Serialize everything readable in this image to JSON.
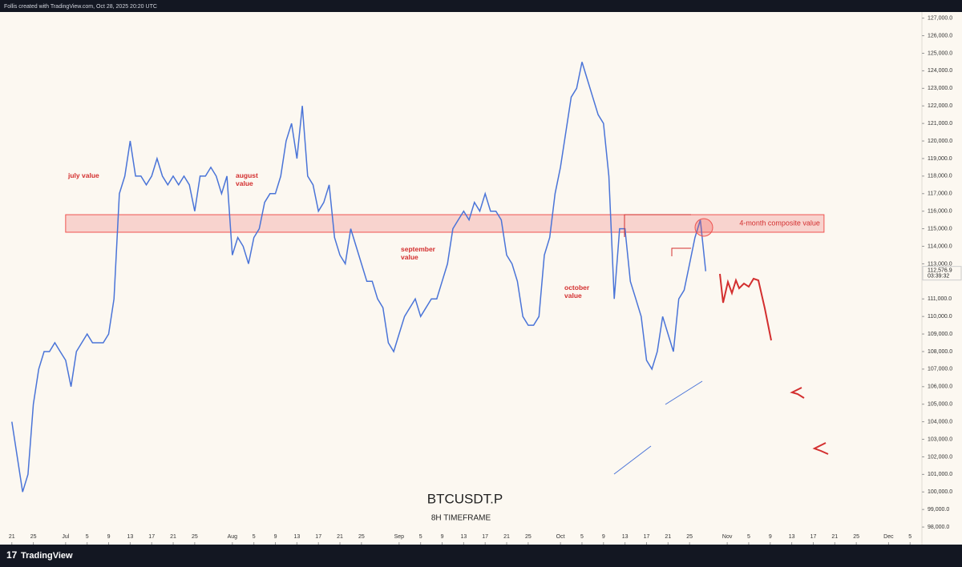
{
  "header": {
    "text": "Follis created with TradingView.com, Oct 28, 2025 20:20 UTC"
  },
  "footer": {
    "brand": "TradingView"
  },
  "chart_data": {
    "type": "line",
    "title": "BTCUSDT.P",
    "subtitle": "8H TIMEFRAME",
    "color": "#4a74d8",
    "x": [
      0,
      1,
      2,
      3,
      4,
      5,
      6,
      7,
      8,
      9,
      10,
      11,
      12,
      13,
      14,
      15,
      16,
      17,
      18,
      19,
      20,
      21,
      22,
      23,
      24,
      25,
      26,
      27,
      28,
      29,
      30,
      31,
      32,
      33,
      34,
      35,
      36,
      37,
      38,
      39,
      40,
      41,
      42,
      43,
      44,
      45,
      46,
      47,
      48,
      49,
      50,
      51,
      52,
      53,
      54,
      55,
      56,
      57,
      58,
      59,
      60,
      61,
      62,
      63,
      64,
      65,
      66,
      67,
      68,
      69,
      70,
      71,
      72,
      73,
      74,
      75,
      76,
      77,
      78,
      79,
      80,
      81,
      82,
      83,
      84,
      85,
      86,
      87,
      88,
      89,
      90,
      91,
      92,
      93,
      94,
      95,
      96,
      97,
      98,
      99,
      100,
      101,
      102,
      103,
      104,
      105,
      106,
      107,
      108,
      109,
      110,
      111,
      112,
      113,
      114,
      115,
      116,
      117,
      118,
      119,
      120,
      121,
      122,
      123,
      124,
      125,
      126,
      127,
      128,
      129
    ],
    "values": [
      104000,
      102000,
      100000,
      101000,
      105000,
      107000,
      108000,
      108000,
      108500,
      108000,
      107500,
      106000,
      108000,
      108500,
      109000,
      108500,
      108500,
      108500,
      109000,
      111000,
      117000,
      118000,
      120000,
      118000,
      118000,
      117500,
      118000,
      119000,
      118000,
      117500,
      118000,
      117500,
      118000,
      117500,
      116000,
      118000,
      118000,
      118500,
      118000,
      117000,
      118000,
      113500,
      114500,
      114000,
      113000,
      114500,
      115000,
      116500,
      117000,
      117000,
      118000,
      120000,
      121000,
      119000,
      122000,
      118000,
      117500,
      116000,
      116500,
      117500,
      114500,
      113500,
      113000,
      115000,
      114000,
      113000,
      112000,
      112000,
      111000,
      110500,
      108500,
      108000,
      109000,
      110000,
      110500,
      111000,
      110000,
      110500,
      111000,
      111000,
      112000,
      113000,
      115000,
      115500,
      116000,
      115500,
      116500,
      116000,
      117000,
      116000,
      116000,
      115500,
      113500,
      113000,
      112000,
      110000,
      109500,
      109500,
      110000,
      113500,
      114500,
      117000,
      118500,
      120500,
      122500,
      123000,
      124500,
      123500,
      122500,
      121500,
      121000,
      118000,
      111000,
      115000,
      115000,
      112000,
      111000,
      110000,
      107500,
      107000,
      108000,
      110000,
      109000,
      108000,
      111000,
      111500,
      113000,
      114500,
      115500,
      112576.9
    ],
    "xlim": [
      -2.2,
      169.2
    ],
    "ylim": [
      97000,
      127350
    ],
    "xticks": [
      {
        "value": 0,
        "label": "21"
      },
      {
        "value": 4,
        "label": "25"
      },
      {
        "value": 10,
        "label": "Jul"
      },
      {
        "value": 14,
        "label": "5"
      },
      {
        "value": 18,
        "label": "9"
      },
      {
        "value": 22,
        "label": "13"
      },
      {
        "value": 26,
        "label": "17"
      },
      {
        "value": 30,
        "label": "21"
      },
      {
        "value": 34,
        "label": "25"
      },
      {
        "value": 41,
        "label": "Aug"
      },
      {
        "value": 45,
        "label": "5"
      },
      {
        "value": 49,
        "label": "9"
      },
      {
        "value": 53,
        "label": "13"
      },
      {
        "value": 57,
        "label": "17"
      },
      {
        "value": 61,
        "label": "21"
      },
      {
        "value": 65,
        "label": "25"
      },
      {
        "value": 72,
        "label": "Sep"
      },
      {
        "value": 76,
        "label": "5"
      },
      {
        "value": 80,
        "label": "9"
      },
      {
        "value": 84,
        "label": "13"
      },
      {
        "value": 88,
        "label": "17"
      },
      {
        "value": 92,
        "label": "21"
      },
      {
        "value": 96,
        "label": "25"
      },
      {
        "value": 102,
        "label": "Oct"
      },
      {
        "value": 106,
        "label": "5"
      },
      {
        "value": 110,
        "label": "9"
      },
      {
        "value": 114,
        "label": "13"
      },
      {
        "value": 118,
        "label": "17"
      },
      {
        "value": 122,
        "label": "21"
      },
      {
        "value": 126,
        "label": "25"
      },
      {
        "value": 133,
        "label": "Nov"
      },
      {
        "value": 137,
        "label": "5"
      },
      {
        "value": 141,
        "label": "9"
      },
      {
        "value": 145,
        "label": "13"
      },
      {
        "value": 149,
        "label": "17"
      },
      {
        "value": 153,
        "label": "21"
      },
      {
        "value": 157,
        "label": "25"
      },
      {
        "value": 163,
        "label": "Dec"
      },
      {
        "value": 167,
        "label": "5"
      }
    ],
    "yticks": [
      {
        "value": 98000,
        "label": "98,000.0"
      },
      {
        "value": 99000,
        "label": "99,000.0"
      },
      {
        "value": 100000,
        "label": "100,000.0"
      },
      {
        "value": 101000,
        "label": "101,000.0"
      },
      {
        "value": 102000,
        "label": "102,000.0"
      },
      {
        "value": 103000,
        "label": "103,000.0"
      },
      {
        "value": 104000,
        "label": "104,000.0"
      },
      {
        "value": 105000,
        "label": "105,000.0"
      },
      {
        "value": 106000,
        "label": "106,000.0"
      },
      {
        "value": 107000,
        "label": "107,000.0"
      },
      {
        "value": 108000,
        "label": "108,000.0"
      },
      {
        "value": 109000,
        "label": "109,000.0"
      },
      {
        "value": 110000,
        "label": "110,000.0"
      },
      {
        "value": 111000,
        "label": "111,000.0"
      },
      {
        "value": 113000,
        "label": "113,000.0"
      },
      {
        "value": 114000,
        "label": "114,000.0"
      },
      {
        "value": 115000,
        "label": "115,000.0"
      },
      {
        "value": 116000,
        "label": "116,000.0"
      },
      {
        "value": 117000,
        "label": "117,000.0"
      },
      {
        "value": 118000,
        "label": "118,000.0"
      },
      {
        "value": 119000,
        "label": "119,000.0"
      },
      {
        "value": 120000,
        "label": "120,000.0"
      },
      {
        "value": 121000,
        "label": "121,000.0"
      },
      {
        "value": 122000,
        "label": "122,000.0"
      },
      {
        "value": 123000,
        "label": "123,000.0"
      },
      {
        "value": 124000,
        "label": "124,000.0"
      },
      {
        "value": 125000,
        "label": "125,000.0"
      },
      {
        "value": 126000,
        "label": "126,000.0"
      },
      {
        "value": 127000,
        "label": "127,000.0"
      }
    ],
    "last_price": {
      "value": 112576.9,
      "label": "112,576.9"
    },
    "countdown": "03:39:32",
    "composite_band": {
      "label": "4-month composite value",
      "range": [
        114800,
        115800
      ],
      "x": [
        10,
        151
      ]
    },
    "annotations": [
      "july value",
      "august value",
      "september value",
      "october value"
    ]
  }
}
